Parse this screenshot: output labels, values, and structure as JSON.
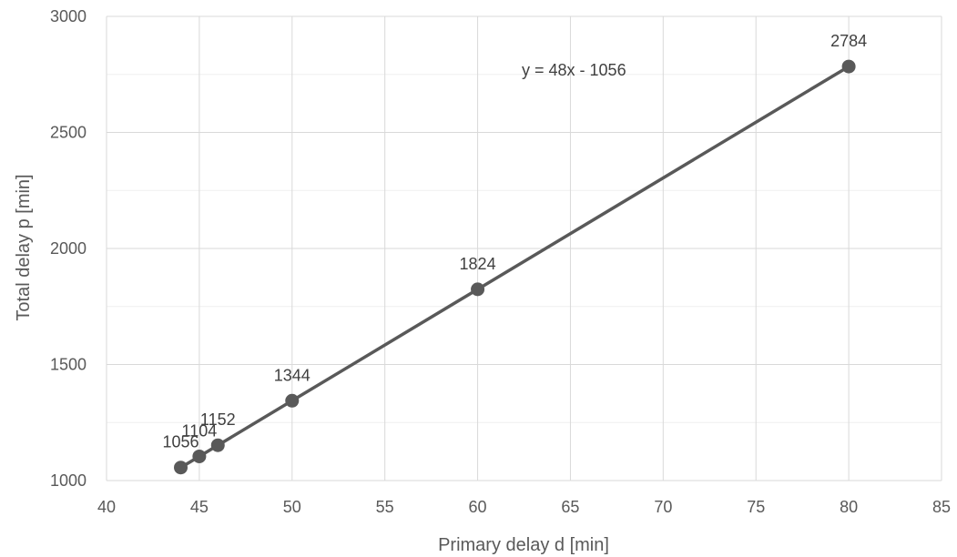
{
  "chart_data": {
    "type": "line",
    "xlabel": "Primary delay d [min]",
    "ylabel": "Total delay p [min]",
    "xlim": [
      40,
      85
    ],
    "ylim": [
      1000,
      3000
    ],
    "x_ticks": [
      40,
      45,
      50,
      55,
      60,
      65,
      70,
      75,
      80,
      85
    ],
    "y_ticks": [
      1000,
      1500,
      2000,
      2500,
      3000
    ],
    "grid": true,
    "series": [
      {
        "x": [
          44,
          45,
          46,
          50,
          60,
          80
        ],
        "y": [
          1056,
          1104,
          1152,
          1344,
          1824,
          2784
        ],
        "color": "#595959",
        "markers": true
      }
    ],
    "data_labels": [
      "1056",
      "1104",
      "1152",
      "1344",
      "1824",
      "2784"
    ],
    "annotations": [
      {
        "text": "y = 48x - 1056"
      }
    ]
  }
}
